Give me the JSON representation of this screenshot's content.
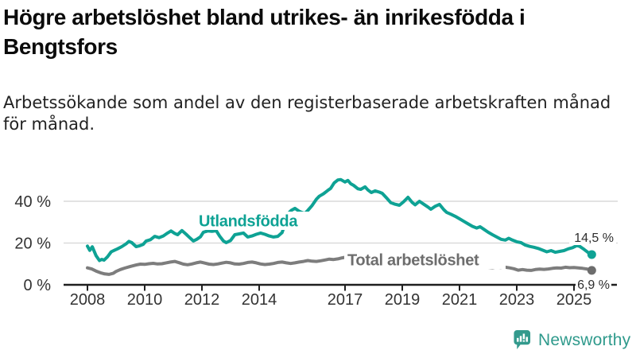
{
  "header": {
    "title_line1": "Högre arbetslöshet bland utrikes- än inrikesfödda i",
    "title_line2": "Bengtsfors",
    "subtitle_line1": "Arbetssökande som andel av den registerbaserade arbetskraften månad",
    "subtitle_line2": "för månad."
  },
  "footer": {
    "brand": "Newsworthy"
  },
  "colors": {
    "accent_teal": "#0ea294",
    "line_gray": "#7d7d7d",
    "label_gray": "#6d6d6d",
    "axis": "#1f1f1f",
    "grid": "#dadada",
    "tick_text": "#333333",
    "value_text": "#2e2e2e",
    "logo_teal": "#339a8d",
    "background": "#ffffff"
  },
  "chart_data": {
    "type": "line",
    "title": "Högre arbetslöshet bland utrikes- än inrikesfödda i Bengtsfors",
    "subtitle": "Arbetssökande som andel av den registerbaserade arbetskraften månad för månad.",
    "xlabel": "",
    "ylabel": "",
    "unit": "%",
    "grid": "horizontal",
    "legend_position": "inline-labels",
    "xlim": [
      2007.9,
      2025.9
    ],
    "ylim": [
      0,
      55
    ],
    "x_ticks": [
      {
        "year": 2008,
        "label": "2008"
      },
      {
        "year": 2010,
        "label": "2010"
      },
      {
        "year": 2012,
        "label": "2012"
      },
      {
        "year": 2014,
        "label": "2014"
      },
      {
        "year": 2017,
        "label": "2017"
      },
      {
        "year": 2019,
        "label": "2019"
      },
      {
        "year": 2021,
        "label": "2021"
      },
      {
        "year": 2023,
        "label": "2023"
      },
      {
        "year": 2025,
        "label": "2025"
      }
    ],
    "y_ticks": [
      {
        "value": 0,
        "label": "0 %"
      },
      {
        "value": 20,
        "label": "20 %"
      },
      {
        "value": 40,
        "label": "40 %"
      }
    ],
    "series": [
      {
        "name": "Utlandsfödda",
        "color": "#0ea294",
        "label_color": "#0ea294",
        "dot_color": "#0ea294",
        "end_label": "14,5 %",
        "end_value": 14.5,
        "points": [
          [
            2008.0,
            18.5
          ],
          [
            2008.08,
            16.5
          ],
          [
            2008.17,
            18.2
          ],
          [
            2008.3,
            14.0
          ],
          [
            2008.42,
            11.6
          ],
          [
            2008.5,
            12.2
          ],
          [
            2008.58,
            11.8
          ],
          [
            2008.7,
            13.4
          ],
          [
            2008.83,
            15.8
          ],
          [
            2008.95,
            16.6
          ],
          [
            2009.05,
            17.2
          ],
          [
            2009.2,
            18.3
          ],
          [
            2009.35,
            19.6
          ],
          [
            2009.45,
            20.8
          ],
          [
            2009.55,
            20.2
          ],
          [
            2009.7,
            18.3
          ],
          [
            2009.8,
            18.6
          ],
          [
            2009.95,
            19.4
          ],
          [
            2010.05,
            21.0
          ],
          [
            2010.2,
            21.6
          ],
          [
            2010.35,
            23.2
          ],
          [
            2010.5,
            22.6
          ],
          [
            2010.65,
            23.4
          ],
          [
            2010.8,
            24.8
          ],
          [
            2010.92,
            25.8
          ],
          [
            2011.05,
            24.6
          ],
          [
            2011.15,
            24.0
          ],
          [
            2011.3,
            26.0
          ],
          [
            2011.45,
            24.2
          ],
          [
            2011.55,
            22.9
          ],
          [
            2011.7,
            21.0
          ],
          [
            2011.82,
            21.8
          ],
          [
            2011.95,
            23.0
          ],
          [
            2012.05,
            25.2
          ],
          [
            2012.2,
            25.8
          ],
          [
            2012.35,
            25.6
          ],
          [
            2012.5,
            25.9
          ],
          [
            2012.62,
            23.3
          ],
          [
            2012.75,
            21.0
          ],
          [
            2012.85,
            20.2
          ],
          [
            2013.0,
            21.2
          ],
          [
            2013.15,
            24.0
          ],
          [
            2013.3,
            24.4
          ],
          [
            2013.45,
            24.8
          ],
          [
            2013.6,
            22.9
          ],
          [
            2013.75,
            23.4
          ],
          [
            2013.9,
            24.2
          ],
          [
            2014.05,
            24.8
          ],
          [
            2014.2,
            24.2
          ],
          [
            2014.35,
            23.4
          ],
          [
            2014.5,
            22.9
          ],
          [
            2014.65,
            23.2
          ],
          [
            2014.8,
            25.0
          ],
          [
            2014.9,
            29.0
          ],
          [
            2015.0,
            34.0
          ],
          [
            2015.12,
            35.6
          ],
          [
            2015.25,
            36.6
          ],
          [
            2015.4,
            35.2
          ],
          [
            2015.5,
            34.6
          ],
          [
            2015.6,
            34.2
          ],
          [
            2015.7,
            35.6
          ],
          [
            2015.85,
            38.0
          ],
          [
            2016.0,
            41.0
          ],
          [
            2016.1,
            42.4
          ],
          [
            2016.25,
            43.6
          ],
          [
            2016.4,
            45.2
          ],
          [
            2016.5,
            46.2
          ],
          [
            2016.62,
            48.8
          ],
          [
            2016.75,
            50.2
          ],
          [
            2016.85,
            50.4
          ],
          [
            2017.0,
            49.2
          ],
          [
            2017.1,
            50.0
          ],
          [
            2017.2,
            48.4
          ],
          [
            2017.3,
            47.6
          ],
          [
            2017.45,
            46.0
          ],
          [
            2017.55,
            45.7
          ],
          [
            2017.7,
            46.9
          ],
          [
            2017.8,
            45.4
          ],
          [
            2017.92,
            44.2
          ],
          [
            2018.05,
            45.0
          ],
          [
            2018.2,
            44.4
          ],
          [
            2018.3,
            43.8
          ],
          [
            2018.45,
            41.6
          ],
          [
            2018.6,
            39.3
          ],
          [
            2018.75,
            38.6
          ],
          [
            2018.9,
            38.1
          ],
          [
            2019.05,
            39.8
          ],
          [
            2019.2,
            41.9
          ],
          [
            2019.35,
            39.4
          ],
          [
            2019.45,
            38.3
          ],
          [
            2019.6,
            40.0
          ],
          [
            2019.75,
            38.6
          ],
          [
            2019.9,
            37.2
          ],
          [
            2020.0,
            36.2
          ],
          [
            2020.15,
            37.6
          ],
          [
            2020.3,
            38.5
          ],
          [
            2020.45,
            36.0
          ],
          [
            2020.55,
            34.7
          ],
          [
            2020.7,
            33.8
          ],
          [
            2020.85,
            32.8
          ],
          [
            2021.0,
            31.6
          ],
          [
            2021.15,
            30.4
          ],
          [
            2021.3,
            29.2
          ],
          [
            2021.45,
            28.0
          ],
          [
            2021.6,
            27.2
          ],
          [
            2021.72,
            27.8
          ],
          [
            2021.85,
            26.6
          ],
          [
            2022.0,
            25.2
          ],
          [
            2022.15,
            24.0
          ],
          [
            2022.3,
            22.9
          ],
          [
            2022.45,
            21.8
          ],
          [
            2022.6,
            21.4
          ],
          [
            2022.72,
            22.3
          ],
          [
            2022.85,
            21.4
          ],
          [
            2023.0,
            20.6
          ],
          [
            2023.15,
            20.2
          ],
          [
            2023.3,
            19.0
          ],
          [
            2023.45,
            18.4
          ],
          [
            2023.6,
            18.0
          ],
          [
            2023.75,
            17.4
          ],
          [
            2023.9,
            16.6
          ],
          [
            2024.05,
            15.8
          ],
          [
            2024.2,
            16.4
          ],
          [
            2024.35,
            15.6
          ],
          [
            2024.5,
            16.0
          ],
          [
            2024.65,
            16.4
          ],
          [
            2024.8,
            17.2
          ],
          [
            2024.95,
            17.8
          ],
          [
            2025.1,
            18.8
          ],
          [
            2025.2,
            18.4
          ],
          [
            2025.35,
            17.0
          ],
          [
            2025.5,
            15.4
          ],
          [
            2025.62,
            14.5
          ]
        ]
      },
      {
        "name": "Total arbetslöshet",
        "color": "#7d7d7d",
        "label_color": "#6d6d6d",
        "dot_color": "#6d6d6d",
        "end_label": "6,9 %",
        "end_value": 6.9,
        "points": [
          [
            2008.0,
            8.1
          ],
          [
            2008.15,
            7.6
          ],
          [
            2008.3,
            6.6
          ],
          [
            2008.45,
            5.8
          ],
          [
            2008.6,
            5.2
          ],
          [
            2008.75,
            5.0
          ],
          [
            2008.9,
            5.5
          ],
          [
            2009.0,
            6.4
          ],
          [
            2009.15,
            7.3
          ],
          [
            2009.3,
            8.0
          ],
          [
            2009.5,
            8.8
          ],
          [
            2009.7,
            9.5
          ],
          [
            2009.85,
            9.9
          ],
          [
            2010.0,
            9.8
          ],
          [
            2010.15,
            10.1
          ],
          [
            2010.3,
            10.3
          ],
          [
            2010.45,
            10.0
          ],
          [
            2010.6,
            10.1
          ],
          [
            2010.75,
            10.5
          ],
          [
            2010.9,
            10.9
          ],
          [
            2011.05,
            11.2
          ],
          [
            2011.2,
            10.6
          ],
          [
            2011.35,
            9.9
          ],
          [
            2011.5,
            9.6
          ],
          [
            2011.65,
            10.0
          ],
          [
            2011.8,
            10.5
          ],
          [
            2011.95,
            10.9
          ],
          [
            2012.1,
            10.4
          ],
          [
            2012.25,
            9.9
          ],
          [
            2012.4,
            9.7
          ],
          [
            2012.55,
            10.0
          ],
          [
            2012.7,
            10.4
          ],
          [
            2012.85,
            10.8
          ],
          [
            2013.0,
            10.5
          ],
          [
            2013.15,
            10.0
          ],
          [
            2013.3,
            9.9
          ],
          [
            2013.45,
            10.2
          ],
          [
            2013.6,
            10.7
          ],
          [
            2013.75,
            10.9
          ],
          [
            2013.9,
            10.5
          ],
          [
            2014.05,
            10.0
          ],
          [
            2014.2,
            9.7
          ],
          [
            2014.35,
            9.9
          ],
          [
            2014.5,
            10.2
          ],
          [
            2014.65,
            10.7
          ],
          [
            2014.8,
            10.9
          ],
          [
            2014.95,
            10.5
          ],
          [
            2015.1,
            10.2
          ],
          [
            2015.25,
            10.5
          ],
          [
            2015.4,
            10.9
          ],
          [
            2015.55,
            11.2
          ],
          [
            2015.7,
            11.6
          ],
          [
            2015.85,
            11.3
          ],
          [
            2016.0,
            11.2
          ],
          [
            2016.15,
            11.5
          ],
          [
            2016.3,
            11.9
          ],
          [
            2016.45,
            12.3
          ],
          [
            2016.6,
            12.1
          ],
          [
            2016.75,
            12.4
          ],
          [
            2016.9,
            12.9
          ],
          [
            2017.05,
            13.3
          ],
          [
            2017.2,
            13.0
          ],
          [
            2017.4,
            12.7
          ],
          [
            2017.6,
            12.9
          ],
          [
            2017.8,
            12.5
          ],
          [
            2018.0,
            12.2
          ],
          [
            2018.25,
            11.9
          ],
          [
            2018.5,
            11.5
          ],
          [
            2018.75,
            11.2
          ],
          [
            2019.0,
            10.9
          ],
          [
            2019.25,
            10.6
          ],
          [
            2019.5,
            10.3
          ],
          [
            2019.75,
            10.1
          ],
          [
            2020.0,
            10.0
          ],
          [
            2020.2,
            10.4
          ],
          [
            2020.4,
            10.2
          ],
          [
            2020.6,
            9.9
          ],
          [
            2020.8,
            9.6
          ],
          [
            2021.0,
            9.3
          ],
          [
            2021.2,
            9.0
          ],
          [
            2021.4,
            8.8
          ],
          [
            2021.6,
            8.6
          ],
          [
            2021.8,
            8.4
          ],
          [
            2022.0,
            8.2
          ],
          [
            2022.15,
            8.0
          ],
          [
            2022.3,
            8.3
          ],
          [
            2022.45,
            8.1
          ],
          [
            2022.6,
            8.4
          ],
          [
            2022.75,
            8.1
          ],
          [
            2022.9,
            7.7
          ],
          [
            2023.05,
            7.0
          ],
          [
            2023.2,
            7.3
          ],
          [
            2023.35,
            7.0
          ],
          [
            2023.5,
            6.9
          ],
          [
            2023.65,
            7.3
          ],
          [
            2023.8,
            7.5
          ],
          [
            2023.95,
            7.4
          ],
          [
            2024.1,
            7.6
          ],
          [
            2024.25,
            7.9
          ],
          [
            2024.4,
            8.1
          ],
          [
            2024.55,
            8.0
          ],
          [
            2024.7,
            8.4
          ],
          [
            2024.85,
            8.2
          ],
          [
            2025.0,
            8.3
          ],
          [
            2025.15,
            8.1
          ],
          [
            2025.3,
            7.9
          ],
          [
            2025.45,
            7.6
          ],
          [
            2025.62,
            6.9
          ]
        ]
      }
    ]
  }
}
